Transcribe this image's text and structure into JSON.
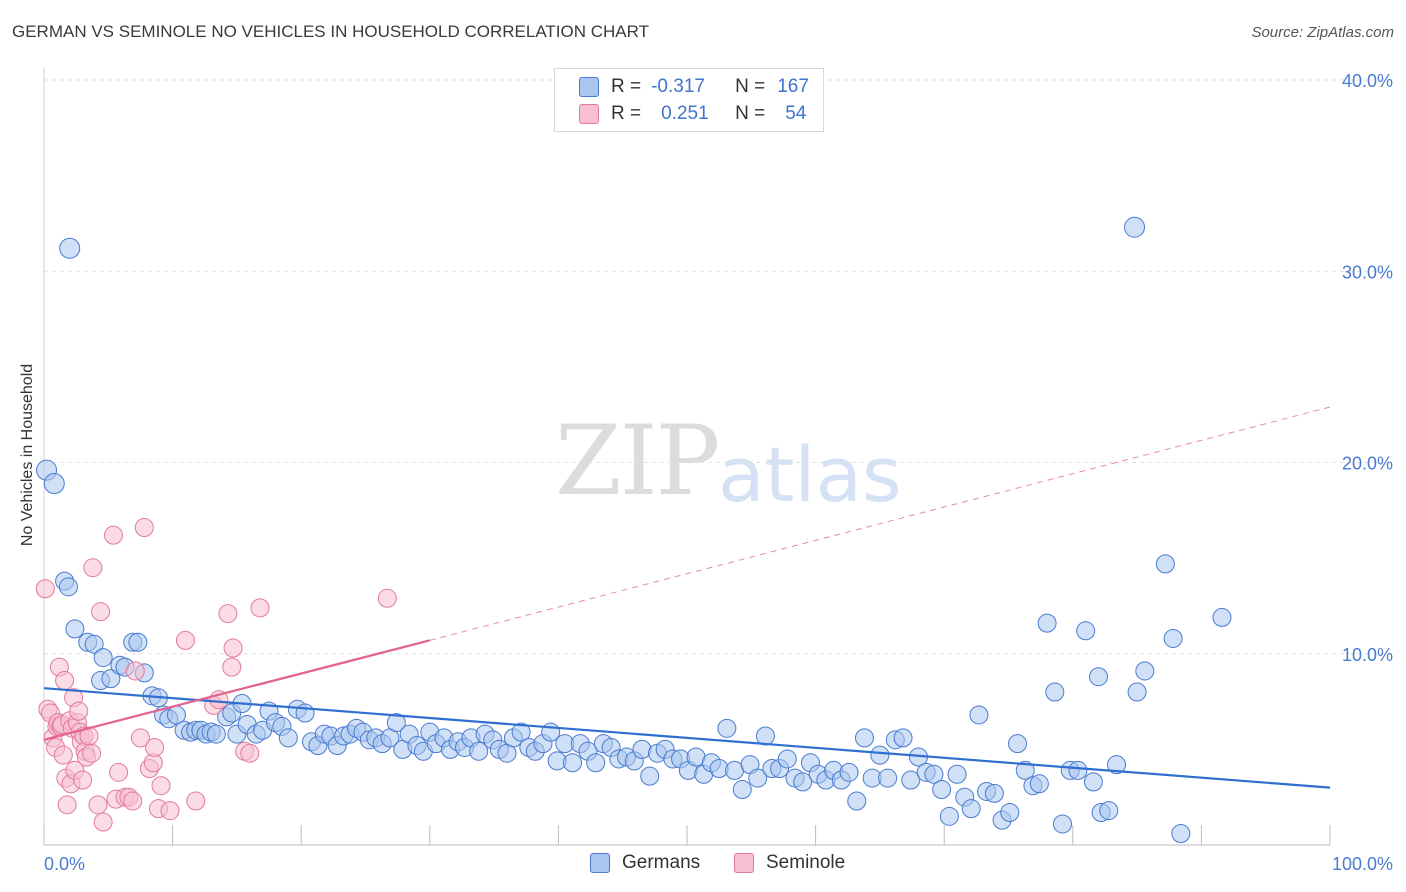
{
  "title": "GERMAN VS SEMINOLE NO VEHICLES IN HOUSEHOLD CORRELATION CHART",
  "source": "Source: ZipAtlas.com",
  "watermark": {
    "zip": "ZIP",
    "atlas": "atlas"
  },
  "legend": {
    "rows": [
      {
        "r_label": "R =",
        "r_value": "-0.317",
        "n_label": "N =",
        "n_value": "167",
        "color": "#a9c6ef"
      },
      {
        "r_label": "R =",
        "r_value": "0.251",
        "n_label": "N =",
        "n_value": "54",
        "color": "#f7bfd0"
      }
    ]
  },
  "bottom_legend": [
    {
      "label": "Germans",
      "color": "#a9c6ef"
    },
    {
      "label": "Seminole",
      "color": "#f7bfd0"
    }
  ],
  "chart_data": {
    "type": "scatter",
    "ylabel": "No Vehicles in Household",
    "xlim": [
      0,
      100
    ],
    "ylim": [
      0,
      40
    ],
    "y_ticks": [
      {
        "value": 10,
        "label": "10.0%"
      },
      {
        "value": 20,
        "label": "20.0%"
      },
      {
        "value": 30,
        "label": "30.0%"
      },
      {
        "value": 40,
        "label": "40.0%"
      }
    ],
    "x_tick_labels": {
      "min": "0.0%",
      "max": "100.0%"
    },
    "series": [
      {
        "name": "Germans",
        "color": "#a9c6ef",
        "stroke": "#4a7bd0",
        "trend": {
          "x0": 0,
          "y0": 8.2,
          "x1": 100,
          "y1": 3.0
        },
        "points": [
          [
            0.2,
            19.6
          ],
          [
            0.8,
            18.9
          ],
          [
            1.6,
            13.8
          ],
          [
            1.9,
            13.5
          ],
          [
            2.4,
            11.3
          ],
          [
            3.4,
            10.6
          ],
          [
            3.9,
            10.5
          ],
          [
            4.6,
            9.8
          ],
          [
            4.4,
            8.6
          ],
          [
            5.2,
            8.7
          ],
          [
            5.9,
            9.4
          ],
          [
            6.3,
            9.3
          ],
          [
            6.9,
            10.6
          ],
          [
            7.3,
            10.6
          ],
          [
            7.8,
            9.0
          ],
          [
            8.4,
            7.8
          ],
          [
            8.9,
            7.7
          ],
          [
            9.3,
            6.8
          ],
          [
            9.7,
            6.6
          ],
          [
            10.3,
            6.8
          ],
          [
            10.9,
            6.0
          ],
          [
            11.4,
            5.9
          ],
          [
            11.8,
            6.0
          ],
          [
            12.2,
            6.0
          ],
          [
            12.6,
            5.8
          ],
          [
            13.0,
            5.9
          ],
          [
            13.4,
            5.8
          ],
          [
            14.2,
            6.7
          ],
          [
            14.6,
            6.9
          ],
          [
            15.0,
            5.8
          ],
          [
            15.4,
            7.4
          ],
          [
            15.8,
            6.3
          ],
          [
            16.5,
            5.8
          ],
          [
            17.0,
            6.0
          ],
          [
            17.5,
            7.0
          ],
          [
            18.0,
            6.4
          ],
          [
            18.5,
            6.2
          ],
          [
            19.0,
            5.6
          ],
          [
            19.7,
            7.1
          ],
          [
            20.3,
            6.9
          ],
          [
            20.8,
            5.4
          ],
          [
            21.3,
            5.2
          ],
          [
            21.8,
            5.8
          ],
          [
            22.3,
            5.7
          ],
          [
            22.8,
            5.2
          ],
          [
            23.3,
            5.7
          ],
          [
            23.8,
            5.8
          ],
          [
            24.3,
            6.1
          ],
          [
            24.8,
            5.9
          ],
          [
            25.3,
            5.5
          ],
          [
            25.8,
            5.6
          ],
          [
            26.3,
            5.3
          ],
          [
            26.9,
            5.6
          ],
          [
            27.4,
            6.4
          ],
          [
            27.9,
            5.0
          ],
          [
            28.4,
            5.8
          ],
          [
            29.0,
            5.2
          ],
          [
            29.5,
            4.9
          ],
          [
            30.0,
            5.9
          ],
          [
            30.5,
            5.3
          ],
          [
            31.1,
            5.6
          ],
          [
            31.6,
            5.0
          ],
          [
            32.2,
            5.4
          ],
          [
            32.7,
            5.1
          ],
          [
            33.2,
            5.6
          ],
          [
            33.8,
            4.9
          ],
          [
            34.3,
            5.8
          ],
          [
            34.9,
            5.5
          ],
          [
            35.4,
            5.0
          ],
          [
            36.0,
            4.8
          ],
          [
            36.5,
            5.6
          ],
          [
            37.1,
            5.9
          ],
          [
            37.7,
            5.1
          ],
          [
            38.2,
            4.9
          ],
          [
            38.8,
            5.3
          ],
          [
            39.4,
            5.9
          ],
          [
            39.9,
            4.4
          ],
          [
            40.5,
            5.3
          ],
          [
            41.1,
            4.3
          ],
          [
            41.7,
            5.3
          ],
          [
            42.3,
            4.9
          ],
          [
            42.9,
            4.3
          ],
          [
            43.5,
            5.3
          ],
          [
            44.1,
            5.1
          ],
          [
            44.7,
            4.5
          ],
          [
            45.3,
            4.6
          ],
          [
            45.9,
            4.4
          ],
          [
            46.5,
            5.0
          ],
          [
            47.1,
            3.6
          ],
          [
            47.7,
            4.8
          ],
          [
            48.3,
            5.0
          ],
          [
            48.9,
            4.5
          ],
          [
            49.5,
            4.5
          ],
          [
            50.1,
            3.9
          ],
          [
            50.7,
            4.6
          ],
          [
            51.3,
            3.7
          ],
          [
            51.9,
            4.3
          ],
          [
            52.5,
            4.0
          ],
          [
            53.1,
            6.1
          ],
          [
            53.7,
            3.9
          ],
          [
            54.3,
            2.9
          ],
          [
            54.9,
            4.2
          ],
          [
            55.5,
            3.5
          ],
          [
            56.1,
            5.7
          ],
          [
            56.6,
            4.0
          ],
          [
            57.2,
            4.0
          ],
          [
            57.8,
            4.5
          ],
          [
            58.4,
            3.5
          ],
          [
            59.0,
            3.3
          ],
          [
            59.6,
            4.3
          ],
          [
            60.2,
            3.7
          ],
          [
            60.8,
            3.4
          ],
          [
            61.4,
            3.9
          ],
          [
            62.0,
            3.4
          ],
          [
            62.6,
            3.8
          ],
          [
            63.2,
            2.3
          ],
          [
            63.8,
            5.6
          ],
          [
            64.4,
            3.5
          ],
          [
            65.0,
            4.7
          ],
          [
            65.6,
            3.5
          ],
          [
            66.2,
            5.5
          ],
          [
            66.8,
            5.6
          ],
          [
            67.4,
            3.4
          ],
          [
            68.0,
            4.6
          ],
          [
            68.6,
            3.8
          ],
          [
            69.2,
            3.7
          ],
          [
            69.8,
            2.9
          ],
          [
            70.4,
            1.5
          ],
          [
            71.0,
            3.7
          ],
          [
            71.6,
            2.5
          ],
          [
            72.1,
            1.9
          ],
          [
            72.7,
            6.8
          ],
          [
            73.3,
            2.8
          ],
          [
            73.9,
            2.7
          ],
          [
            74.5,
            1.3
          ],
          [
            75.1,
            1.7
          ],
          [
            75.7,
            5.3
          ],
          [
            76.3,
            3.9
          ],
          [
            76.9,
            3.1
          ],
          [
            77.4,
            3.2
          ],
          [
            78.0,
            11.6
          ],
          [
            78.6,
            8.0
          ],
          [
            79.2,
            1.1
          ],
          [
            79.8,
            3.9
          ],
          [
            80.4,
            3.9
          ],
          [
            81.0,
            11.2
          ],
          [
            81.6,
            3.3
          ],
          [
            82.2,
            1.7
          ],
          [
            82.8,
            1.8
          ],
          [
            82.0,
            8.8
          ],
          [
            83.4,
            4.2
          ],
          [
            84.8,
            32.3
          ],
          [
            85.0,
            8.0
          ],
          [
            85.6,
            9.1
          ],
          [
            87.2,
            14.7
          ],
          [
            87.8,
            10.8
          ],
          [
            88.4,
            0.6
          ],
          [
            91.6,
            11.9
          ],
          [
            2.0,
            31.2
          ]
        ]
      },
      {
        "name": "Seminole",
        "color": "#f7bfd0",
        "stroke": "#e27a9c",
        "trend": {
          "x0": 0,
          "y0": 5.5,
          "x1": 30,
          "y1": 10.7
        },
        "trend_dashed": {
          "x0": 30,
          "y0": 10.7,
          "x1": 100,
          "y1": 22.9
        },
        "points": [
          [
            0.1,
            13.4
          ],
          [
            0.3,
            7.1
          ],
          [
            0.5,
            6.9
          ],
          [
            0.7,
            5.6
          ],
          [
            0.9,
            5.1
          ],
          [
            1.0,
            6.2
          ],
          [
            1.1,
            6.4
          ],
          [
            1.2,
            9.3
          ],
          [
            1.3,
            6.2
          ],
          [
            1.4,
            6.3
          ],
          [
            1.5,
            4.7
          ],
          [
            1.6,
            8.6
          ],
          [
            1.7,
            3.5
          ],
          [
            1.8,
            2.1
          ],
          [
            2.0,
            6.5
          ],
          [
            2.1,
            3.2
          ],
          [
            2.2,
            6.1
          ],
          [
            2.3,
            7.7
          ],
          [
            2.4,
            3.9
          ],
          [
            2.6,
            6.4
          ],
          [
            2.7,
            7.0
          ],
          [
            2.8,
            5.9
          ],
          [
            2.9,
            5.4
          ],
          [
            3.0,
            3.4
          ],
          [
            3.1,
            5.7
          ],
          [
            3.2,
            4.9
          ],
          [
            3.3,
            4.6
          ],
          [
            3.5,
            5.7
          ],
          [
            3.7,
            4.8
          ],
          [
            3.8,
            14.5
          ],
          [
            4.2,
            2.1
          ],
          [
            4.4,
            12.2
          ],
          [
            4.6,
            1.2
          ],
          [
            5.4,
            16.2
          ],
          [
            5.6,
            2.4
          ],
          [
            5.8,
            3.8
          ],
          [
            6.3,
            2.5
          ],
          [
            6.6,
            2.5
          ],
          [
            6.9,
            2.3
          ],
          [
            7.1,
            9.1
          ],
          [
            7.5,
            5.6
          ],
          [
            7.8,
            16.6
          ],
          [
            8.2,
            4.0
          ],
          [
            8.5,
            4.3
          ],
          [
            8.6,
            5.1
          ],
          [
            8.9,
            1.9
          ],
          [
            9.1,
            3.1
          ],
          [
            9.8,
            1.8
          ],
          [
            11.0,
            10.7
          ],
          [
            11.8,
            2.3
          ],
          [
            13.2,
            7.3
          ],
          [
            13.6,
            7.6
          ],
          [
            14.3,
            12.1
          ],
          [
            14.6,
            9.3
          ],
          [
            14.7,
            10.3
          ],
          [
            15.6,
            4.9
          ],
          [
            16.0,
            4.8
          ],
          [
            16.8,
            12.4
          ],
          [
            26.7,
            12.9
          ]
        ]
      }
    ]
  }
}
